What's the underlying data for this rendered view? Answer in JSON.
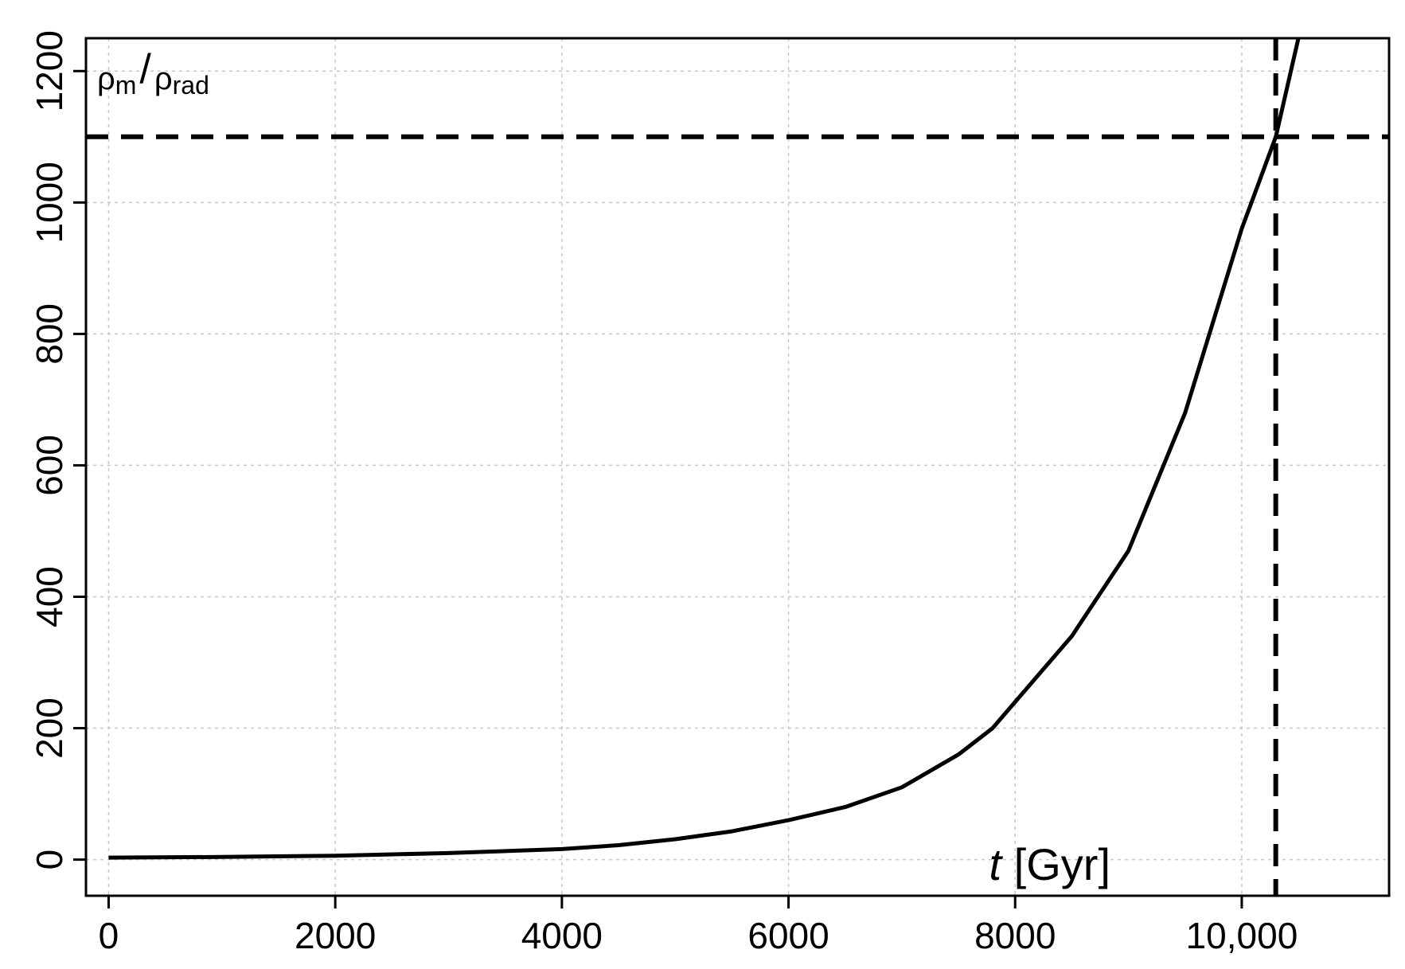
{
  "chart_data": {
    "type": "line",
    "title": "",
    "xlabel": "t [Gyr]",
    "xlabel_italic_part": "t",
    "xlabel_rest": "[Gyr]",
    "ylabel": "ρm/ρrad",
    "ylabel_parts": {
      "rho1": "ρ",
      "sub1": "m",
      "slash": "/",
      "rho2": "ρ",
      "sub2": "rad"
    },
    "xlim": [
      -200,
      11300
    ],
    "ylim": [
      -55,
      1250
    ],
    "x_ticks": [
      0,
      2000,
      4000,
      6000,
      8000,
      10000
    ],
    "x_tick_labels": [
      "0",
      "2000",
      "4000",
      "6000",
      "8000",
      "10,000"
    ],
    "y_ticks": [
      0,
      200,
      400,
      600,
      800,
      1000,
      1200
    ],
    "y_tick_labels": [
      "0",
      "200",
      "400",
      "600",
      "800",
      "1000",
      "1200"
    ],
    "grid": true,
    "series": [
      {
        "x": [
          0,
          1000,
          2000,
          3000,
          4000,
          4500,
          5000,
          5500,
          6000,
          6500,
          7000,
          7500,
          7800,
          8000,
          8500,
          9000,
          9500,
          10000,
          10300,
          10500
        ],
        "y": [
          3,
          4,
          6,
          10,
          16,
          22,
          31,
          43,
          60,
          80,
          110,
          160,
          200,
          240,
          340,
          470,
          680,
          960,
          1100,
          1250
        ]
      }
    ],
    "reference_lines": [
      {
        "orientation": "horizontal",
        "value": 1100,
        "style": "dashed"
      },
      {
        "orientation": "vertical",
        "value": 10300,
        "style": "dashed"
      }
    ]
  },
  "colors": {
    "line": "#000000",
    "grid": "#c8c8c8",
    "background": "#ffffff"
  }
}
